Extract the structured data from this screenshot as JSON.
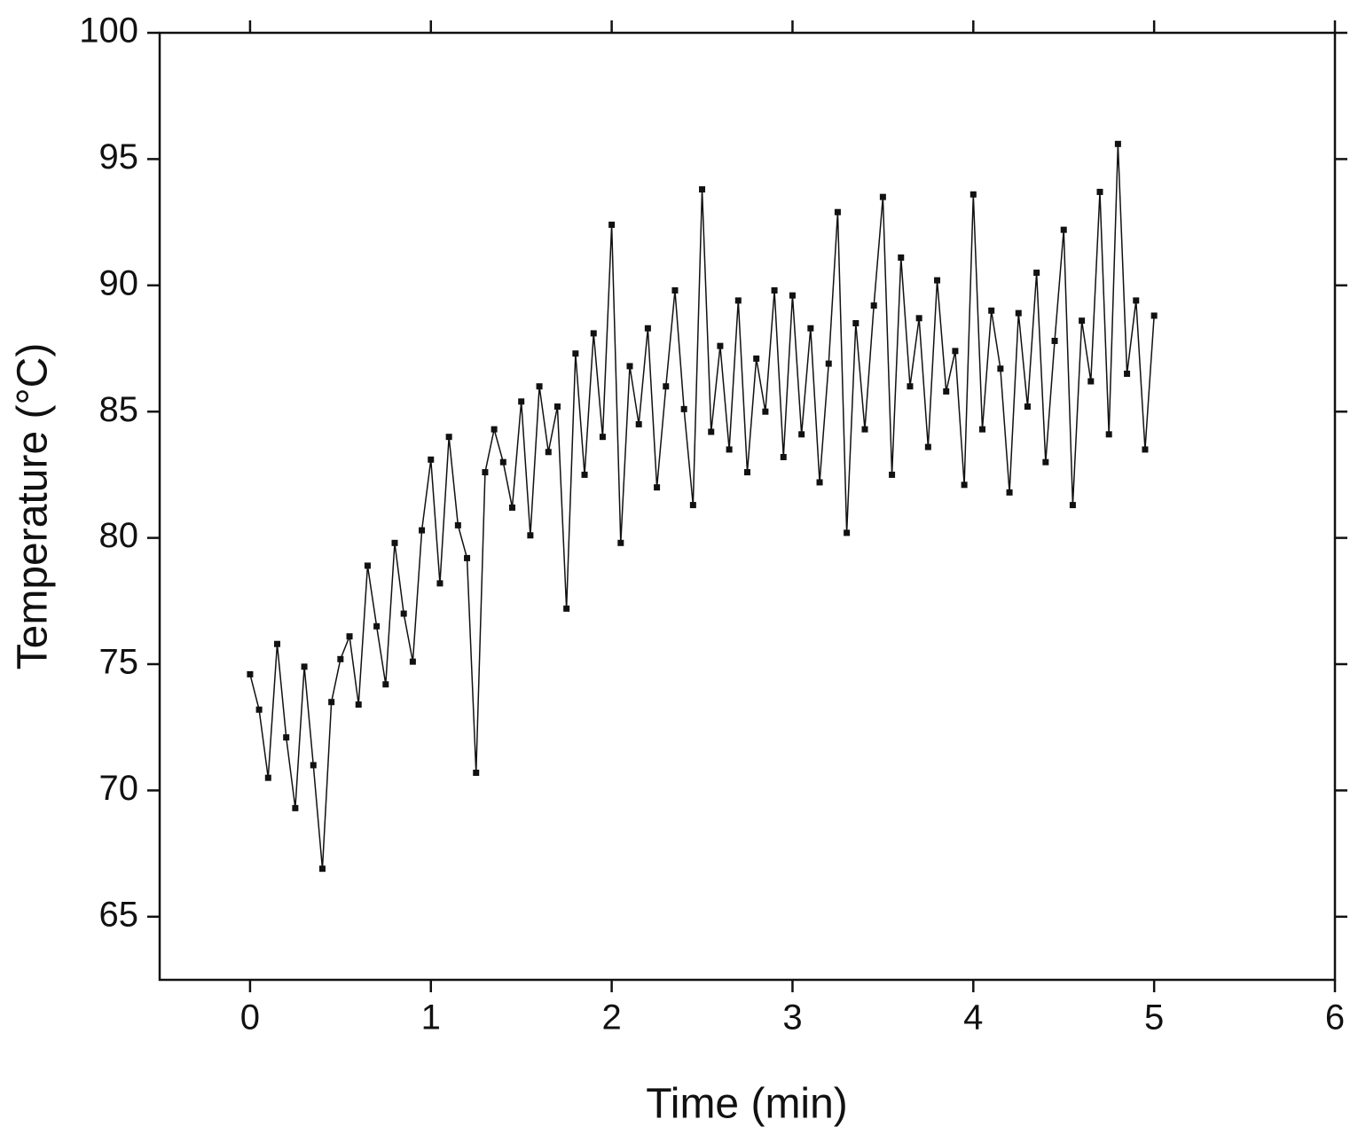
{
  "chart_data": {
    "type": "line",
    "xlabel": "Time (min)",
    "ylabel": "Temperature (°C)",
    "x": [
      0,
      0.05,
      0.1,
      0.15,
      0.2,
      0.25,
      0.3,
      0.35,
      0.4,
      0.45,
      0.5,
      0.55,
      0.6,
      0.65,
      0.7,
      0.75,
      0.8,
      0.85,
      0.9,
      0.95,
      1,
      1.05,
      1.1,
      1.15,
      1.2,
      1.25,
      1.3,
      1.35,
      1.4,
      1.45,
      1.5,
      1.55,
      1.6,
      1.65,
      1.7,
      1.75,
      1.8,
      1.85,
      1.9,
      1.95,
      2,
      2.05,
      2.1,
      2.15,
      2.2,
      2.25,
      2.3,
      2.35,
      2.4,
      2.45,
      2.5,
      2.55,
      2.6,
      2.65,
      2.7,
      2.75,
      2.8,
      2.85,
      2.9,
      2.95,
      3,
      3.05,
      3.1,
      3.15,
      3.2,
      3.25,
      3.3,
      3.35,
      3.4,
      3.45,
      3.5,
      3.55,
      3.6,
      3.65,
      3.7,
      3.75,
      3.8,
      3.85,
      3.9,
      3.95,
      4,
      4.05,
      4.1,
      4.15,
      4.2,
      4.25,
      4.3,
      4.35,
      4.4,
      4.45,
      4.5,
      4.55,
      4.6,
      4.65,
      4.7,
      4.75,
      4.8,
      4.85,
      4.9,
      4.95,
      5
    ],
    "series": [
      {
        "color": "#111111",
        "values": [
          74.6,
          73.2,
          70.5,
          75.8,
          72.1,
          69.3,
          74.9,
          71.0,
          66.9,
          73.5,
          75.2,
          76.1,
          73.4,
          78.9,
          76.5,
          74.2,
          79.8,
          77.0,
          75.1,
          80.3,
          83.1,
          78.2,
          84.0,
          80.5,
          79.2,
          70.7,
          82.6,
          84.3,
          83.0,
          81.2,
          85.4,
          80.1,
          86.0,
          83.4,
          85.2,
          77.2,
          87.3,
          82.5,
          88.1,
          84.0,
          92.4,
          79.8,
          86.8,
          84.5,
          88.3,
          82.0,
          86.0,
          89.8,
          85.1,
          81.3,
          93.8,
          84.2,
          87.6,
          83.5,
          89.4,
          82.6,
          87.1,
          85.0,
          89.8,
          83.2,
          89.6,
          84.1,
          88.3,
          82.2,
          86.9,
          92.9,
          80.2,
          88.5,
          84.3,
          89.2,
          93.5,
          82.5,
          91.1,
          86.0,
          88.7,
          83.6,
          90.2,
          85.8,
          87.4,
          82.1,
          93.6,
          84.3,
          89.0,
          86.7,
          81.8,
          88.9,
          85.2,
          90.5,
          83.0,
          87.8,
          92.2,
          81.3,
          88.6,
          86.2,
          93.7,
          84.1,
          95.6,
          86.5,
          89.4,
          83.5,
          88.8
        ]
      }
    ],
    "xlim": [
      -0.5,
      6
    ],
    "xticks": [
      0,
      1,
      2,
      3,
      4,
      5,
      6
    ],
    "ylim": [
      62.5,
      100
    ],
    "yticks": [
      65,
      70,
      75,
      80,
      85,
      90,
      95,
      100
    ]
  }
}
